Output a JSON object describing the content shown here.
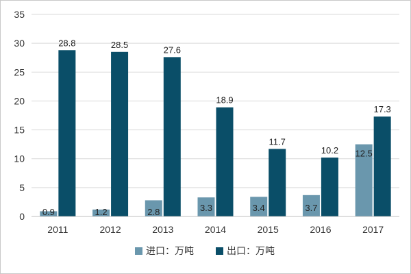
{
  "chart_data": {
    "type": "bar",
    "categories": [
      "2011",
      "2012",
      "2013",
      "2014",
      "2015",
      "2016",
      "2017"
    ],
    "series": [
      {
        "name": "进口：万吨",
        "values": [
          0.9,
          1.2,
          2.8,
          3.3,
          3.4,
          3.7,
          12.5
        ],
        "labels": [
          "0.9",
          "1.2",
          "2.8",
          "3.3",
          "3.4",
          "3.7",
          "12.5"
        ],
        "color": "#6a97ad"
      },
      {
        "name": "出口：万吨",
        "values": [
          28.8,
          28.5,
          27.6,
          18.9,
          11.7,
          10.2,
          17.3
        ],
        "labels": [
          "28.8",
          "28.5",
          "27.6",
          "18.9",
          "11.7",
          "10.2",
          "17.3"
        ],
        "color": "#0a4e68"
      }
    ],
    "yticks": [
      "0",
      "5",
      "10",
      "15",
      "20",
      "25",
      "30",
      "35"
    ],
    "ylim": [
      0,
      35
    ],
    "grid": true,
    "gridColor": "#d9d9d9",
    "legend": "bottom"
  }
}
